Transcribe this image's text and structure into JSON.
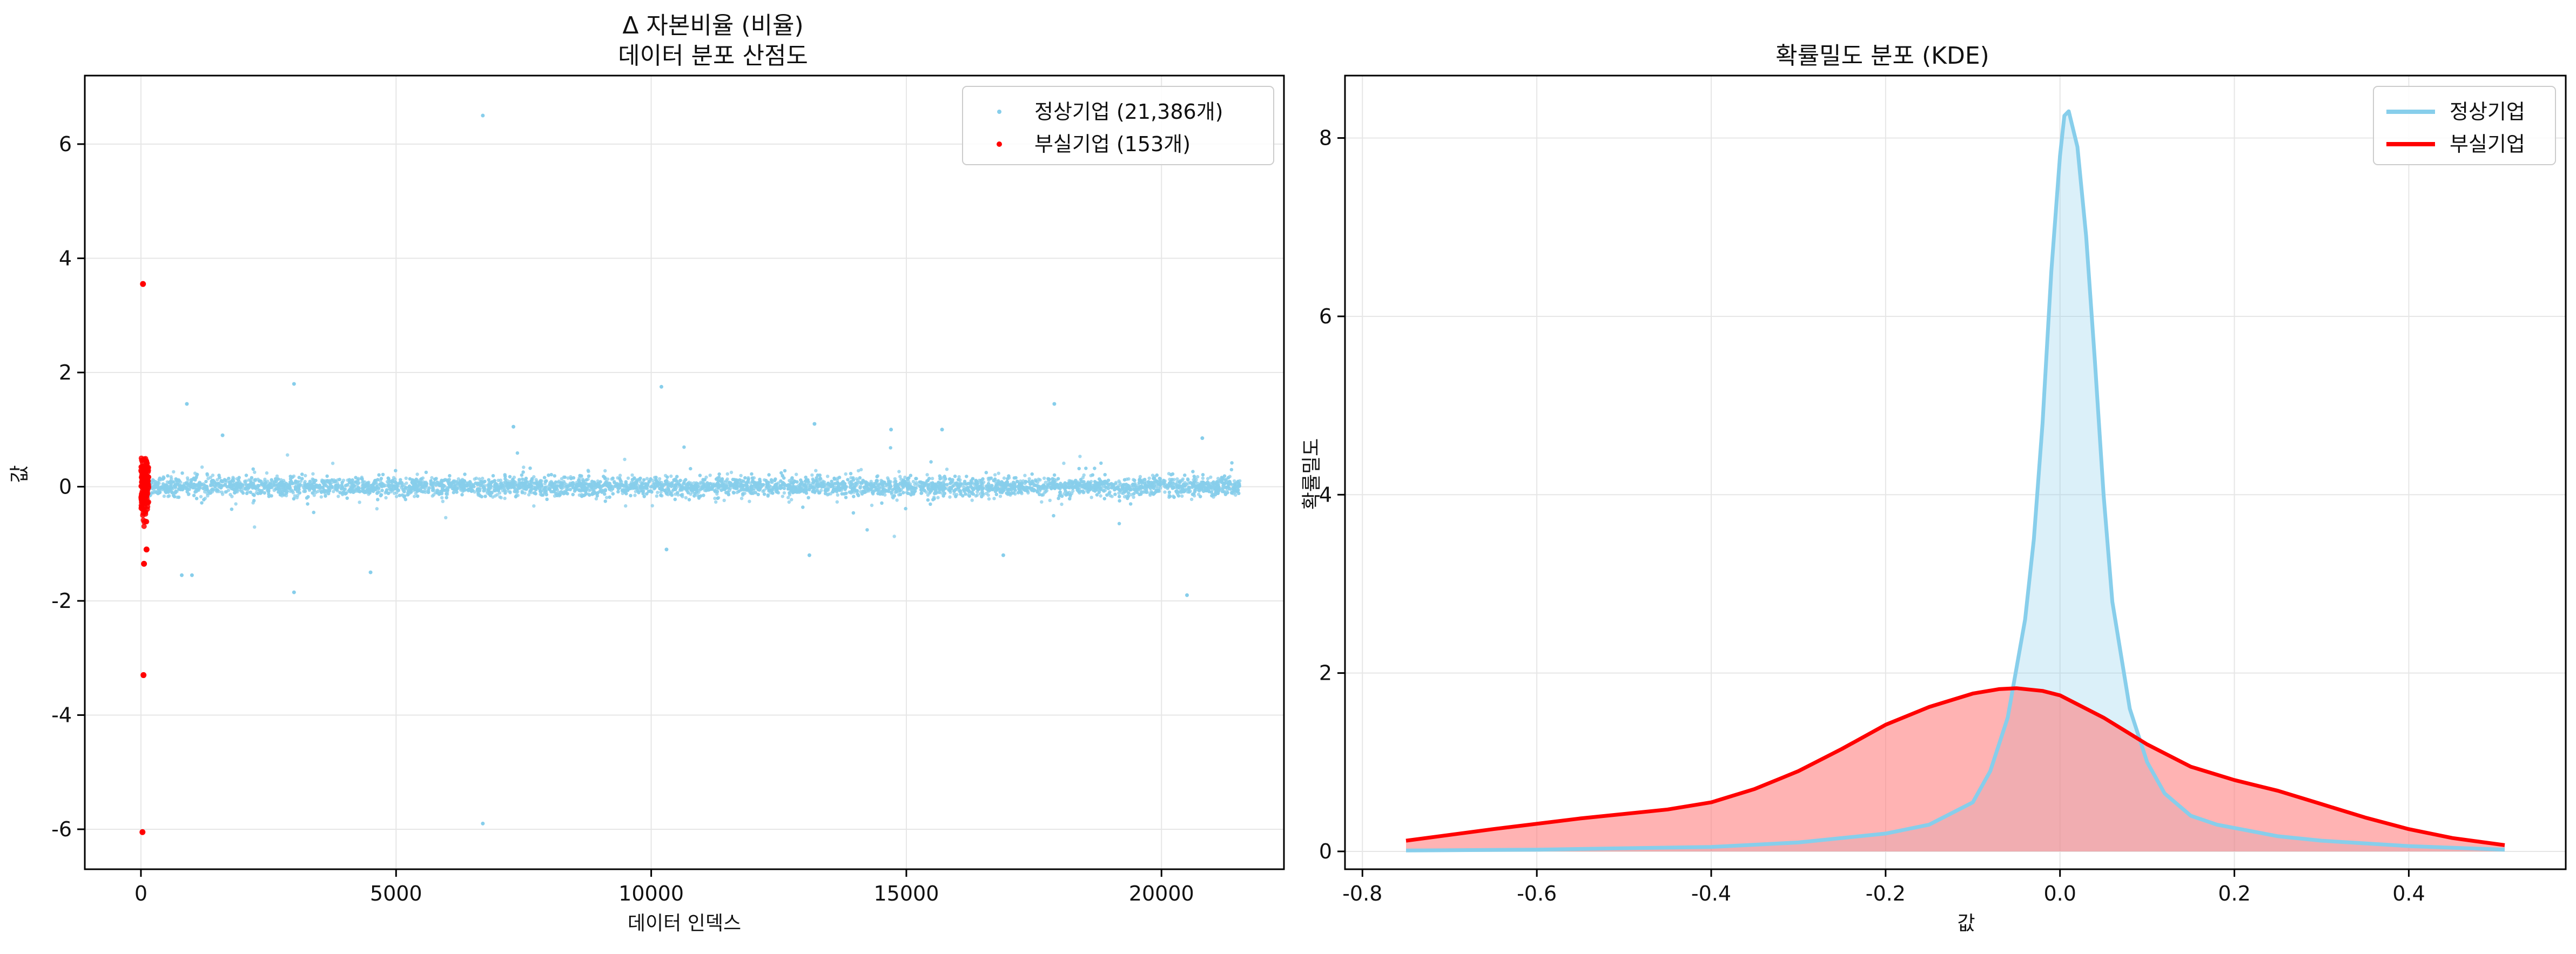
{
  "chart_data": [
    {
      "type": "scatter",
      "title": [
        "Δ 자본비율 (비율)",
        "데이터 분포 산점도"
      ],
      "xlabel": "데이터 인덱스",
      "ylabel": "값",
      "xlim": [
        -1100,
        22400
      ],
      "ylim": [
        -6.7,
        7.2
      ],
      "xticks": [
        0,
        5000,
        10000,
        15000,
        20000
      ],
      "xtick_labels": [
        "0",
        "5000",
        "10000",
        "15000",
        "20000"
      ],
      "yticks": [
        -6,
        -4,
        -2,
        0,
        2,
        4,
        6
      ],
      "ytick_labels": [
        "-6",
        "-4",
        "-2",
        "0",
        "2",
        "4",
        "6"
      ],
      "grid": true,
      "legend_position": "top-right",
      "series": [
        {
          "name": "정상기업 (21,386개)",
          "color": "#87CEEB",
          "count": 21386,
          "x_range": [
            153,
            21539
          ],
          "core_spread": 0.08,
          "outliers": [
            {
              "x": 6700,
              "y": 6.5
            },
            {
              "x": 6700,
              "y": -5.9
            },
            {
              "x": 3000,
              "y": 1.8
            },
            {
              "x": 10200,
              "y": 1.75
            },
            {
              "x": 900,
              "y": 1.45
            },
            {
              "x": 17900,
              "y": 1.45
            },
            {
              "x": 3000,
              "y": -1.85
            },
            {
              "x": 20500,
              "y": -1.9
            },
            {
              "x": 4500,
              "y": -1.5
            },
            {
              "x": 800,
              "y": -1.55
            },
            {
              "x": 1000,
              "y": -1.55
            },
            {
              "x": 13100,
              "y": -1.2
            },
            {
              "x": 16900,
              "y": -1.2
            },
            {
              "x": 10300,
              "y": -1.1
            },
            {
              "x": 1600,
              "y": 0.9
            },
            {
              "x": 7300,
              "y": 1.05
            },
            {
              "x": 13200,
              "y": 1.1
            },
            {
              "x": 15700,
              "y": 1.0
            },
            {
              "x": 14700,
              "y": 1.0
            },
            {
              "x": 20800,
              "y": 0.85
            }
          ]
        },
        {
          "name": "부실기업 (153개)",
          "color": "#FF0000",
          "count": 153,
          "x_range": [
            0,
            152
          ],
          "outliers": [
            {
              "x": 40,
              "y": 3.55
            },
            {
              "x": 50,
              "y": -3.3
            },
            {
              "x": 30,
              "y": -6.05
            },
            {
              "x": 60,
              "y": -1.35
            },
            {
              "x": 110,
              "y": -1.1
            }
          ]
        }
      ]
    },
    {
      "type": "line",
      "title": "확률밀도 분포 (KDE)",
      "xlabel": "값",
      "ylabel": "확률밀도",
      "xlim": [
        -0.82,
        0.58
      ],
      "ylim": [
        -0.2,
        8.7
      ],
      "xticks": [
        -0.8,
        -0.6,
        -0.4,
        -0.2,
        0.0,
        0.2,
        0.4
      ],
      "xtick_labels": [
        "-0.8",
        "-0.6",
        "-0.4",
        "-0.2",
        "0.0",
        "0.2",
        "0.4"
      ],
      "yticks": [
        0,
        2,
        4,
        6,
        8
      ],
      "ytick_labels": [
        "0",
        "2",
        "4",
        "6",
        "8"
      ],
      "grid": true,
      "filled": true,
      "legend_position": "top-right",
      "series": [
        {
          "name": "정상기업",
          "color": "#87CEEB",
          "fill": "#87CEEB",
          "points": [
            [
              -0.75,
              0.01
            ],
            [
              -0.6,
              0.02
            ],
            [
              -0.4,
              0.05
            ],
            [
              -0.3,
              0.1
            ],
            [
              -0.2,
              0.2
            ],
            [
              -0.15,
              0.3
            ],
            [
              -0.1,
              0.55
            ],
            [
              -0.08,
              0.9
            ],
            [
              -0.06,
              1.5
            ],
            [
              -0.04,
              2.6
            ],
            [
              -0.03,
              3.5
            ],
            [
              -0.02,
              4.8
            ],
            [
              -0.01,
              6.5
            ],
            [
              0.0,
              7.8
            ],
            [
              0.005,
              8.25
            ],
            [
              0.01,
              8.3
            ],
            [
              0.02,
              7.9
            ],
            [
              0.03,
              6.9
            ],
            [
              0.04,
              5.5
            ],
            [
              0.05,
              4.0
            ],
            [
              0.06,
              2.8
            ],
            [
              0.08,
              1.6
            ],
            [
              0.1,
              1.0
            ],
            [
              0.12,
              0.65
            ],
            [
              0.15,
              0.4
            ],
            [
              0.18,
              0.3
            ],
            [
              0.25,
              0.17
            ],
            [
              0.3,
              0.12
            ],
            [
              0.4,
              0.06
            ],
            [
              0.51,
              0.02
            ]
          ]
        },
        {
          "name": "부실기업",
          "color": "#FF0000",
          "fill": "#FF8080",
          "points": [
            [
              -0.75,
              0.12
            ],
            [
              -0.65,
              0.25
            ],
            [
              -0.55,
              0.37
            ],
            [
              -0.45,
              0.47
            ],
            [
              -0.4,
              0.55
            ],
            [
              -0.35,
              0.7
            ],
            [
              -0.3,
              0.9
            ],
            [
              -0.25,
              1.15
            ],
            [
              -0.2,
              1.42
            ],
            [
              -0.15,
              1.62
            ],
            [
              -0.1,
              1.77
            ],
            [
              -0.07,
              1.82
            ],
            [
              -0.05,
              1.83
            ],
            [
              -0.02,
              1.8
            ],
            [
              0.0,
              1.75
            ],
            [
              0.05,
              1.5
            ],
            [
              0.1,
              1.2
            ],
            [
              0.15,
              0.95
            ],
            [
              0.2,
              0.8
            ],
            [
              0.25,
              0.68
            ],
            [
              0.3,
              0.53
            ],
            [
              0.35,
              0.38
            ],
            [
              0.4,
              0.25
            ],
            [
              0.45,
              0.15
            ],
            [
              0.51,
              0.07
            ]
          ]
        }
      ]
    }
  ]
}
